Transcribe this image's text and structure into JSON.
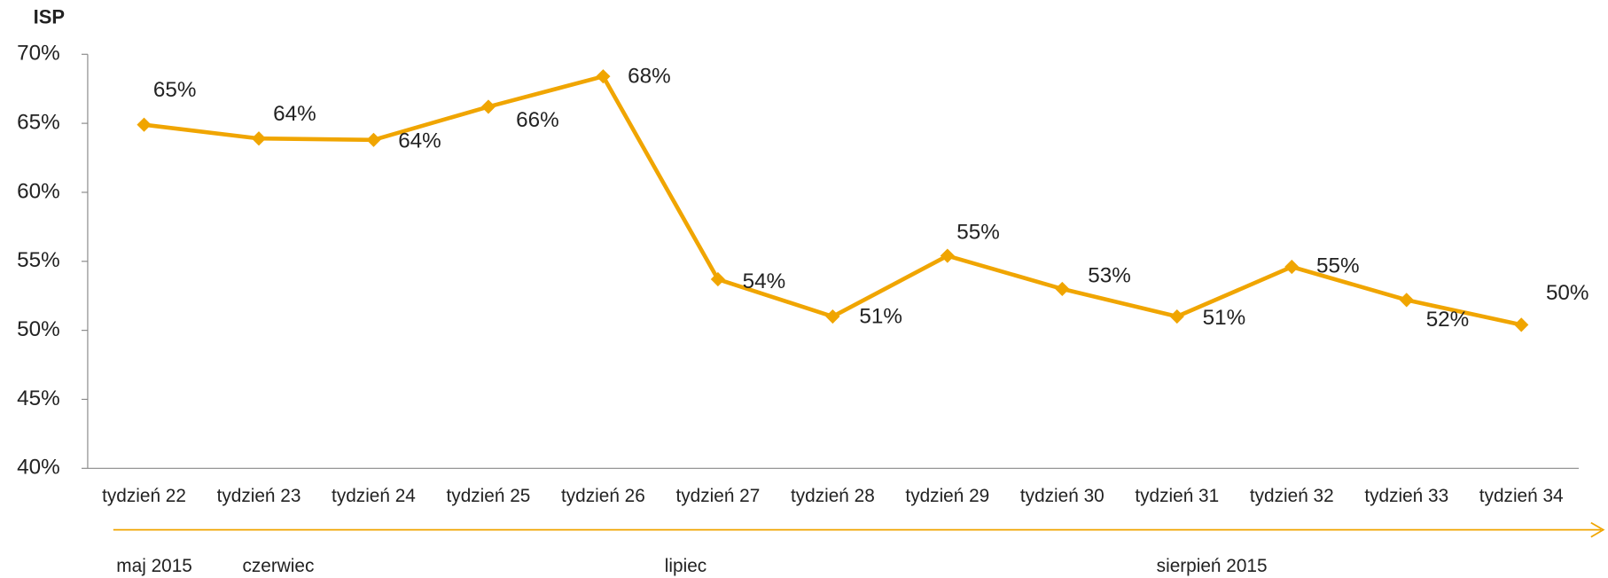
{
  "chart_data": {
    "type": "line",
    "y_label": "ISP",
    "categories": [
      "tydzień 22",
      "tydzień 23",
      "tydzień 24",
      "tydzień 25",
      "tydzień 26",
      "tydzień 27",
      "tydzień 28",
      "tydzień 29",
      "tydzień 30",
      "tydzień 31",
      "tydzień 32",
      "tydzień 33",
      "tydzień 34"
    ],
    "series": [
      {
        "name": "ISP",
        "color": "#f0a500",
        "values": [
          64.9,
          63.9,
          63.8,
          66.2,
          68.4,
          53.7,
          51.0,
          55.4,
          53.0,
          51.0,
          54.6,
          52.2,
          50.4
        ],
        "value_labels": [
          "65%",
          "64%",
          "64%",
          "66%",
          "68%",
          "54%",
          "51%",
          "55%",
          "53%",
          "51%",
          "55%",
          "52%",
          "50%"
        ]
      }
    ],
    "ylim": [
      40,
      70
    ],
    "yticks": [
      {
        "value": 40,
        "label": "40%"
      },
      {
        "value": 45,
        "label": "45%"
      },
      {
        "value": 50,
        "label": "50%"
      },
      {
        "value": 55,
        "label": "55%"
      },
      {
        "value": 60,
        "label": "60%"
      },
      {
        "value": 65,
        "label": "65%"
      },
      {
        "value": 70,
        "label": "70%"
      }
    ],
    "annotations": [
      "maj 2015",
      "czerwiec",
      "lipiec",
      "sierpień 2015"
    ]
  }
}
